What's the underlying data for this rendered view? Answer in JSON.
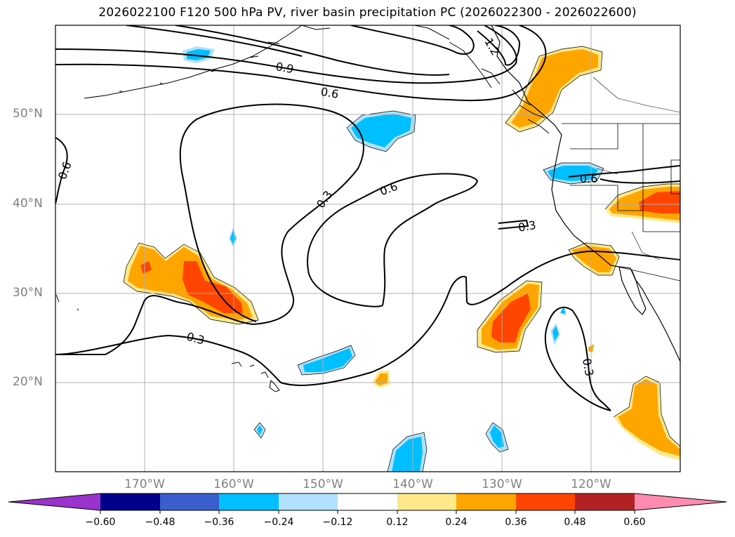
{
  "title": "2026022100 F120 500 hPa PV, river basin precipitation PC (2026022300 - 2026022600)",
  "map": {
    "lat_labels": [
      "50°N",
      "40°N",
      "30°N",
      "20°N"
    ],
    "lon_labels": [
      "170°W",
      "160°W",
      "150°W",
      "140°W",
      "130°W",
      "120°W"
    ],
    "contour_labels": [
      "1.2",
      "0.9",
      "0.6",
      "0.6",
      "0.3",
      "0.6",
      "0.6",
      "0.3",
      "0.3",
      "0.3"
    ],
    "line_color": "#000000",
    "grid_color": "#b0b0b0"
  },
  "colorbar": {
    "ticks": [
      "−0.60",
      "−0.48",
      "−0.36",
      "−0.24",
      "−0.12",
      "0.12",
      "0.24",
      "0.36",
      "0.48",
      "0.60"
    ],
    "colors": [
      "#9933cc",
      "#00008b",
      "#3a5fcd",
      "#00bfff",
      "#b0e2ff",
      "#ffffff",
      "#ffe98a",
      "#ffa500",
      "#ff4500",
      "#b22222",
      "#ff8cb0"
    ]
  }
}
